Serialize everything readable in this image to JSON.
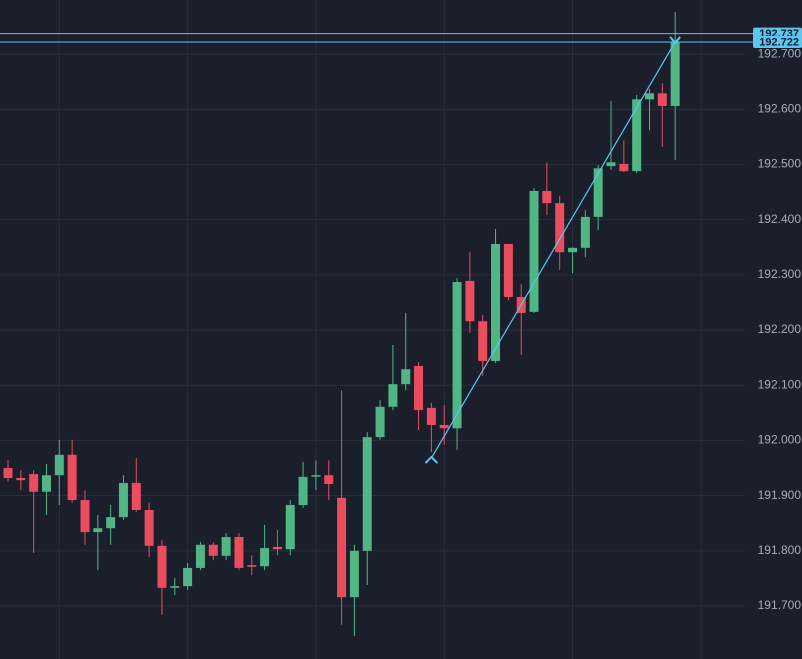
{
  "chart_data": {
    "type": "candlestick",
    "up_color": "#50b683",
    "down_color": "#ea4d5e",
    "grid": true,
    "ylim": [
      191.604,
      192.798
    ],
    "yticks": [
      {
        "value": 191.7,
        "label": "191.700"
      },
      {
        "value": 191.8,
        "label": "191.800"
      },
      {
        "value": 191.9,
        "label": "191.900"
      },
      {
        "value": 192.0,
        "label": "192.000"
      },
      {
        "value": 192.1,
        "label": "192.100"
      },
      {
        "value": 192.2,
        "label": "192.200"
      },
      {
        "value": 192.3,
        "label": "192.300"
      },
      {
        "value": 192.4,
        "label": "192.400"
      },
      {
        "value": 192.5,
        "label": "192.500"
      },
      {
        "value": 192.6,
        "label": "192.600"
      },
      {
        "value": 192.7,
        "label": "192.700"
      }
    ],
    "open": [
      191.95,
      191.932,
      191.939,
      191.907,
      191.937,
      191.974,
      191.892,
      191.834,
      191.841,
      191.861,
      191.923,
      191.874,
      191.809,
      191.733,
      191.736,
      191.769,
      191.811,
      191.791,
      191.825,
      191.774,
      191.772,
      191.807,
      191.803,
      191.883,
      191.936,
      191.937,
      191.896,
      191.716,
      191.8,
      192.006,
      192.061,
      192.102,
      192.135,
      192.059,
      192.028,
      192.022,
      192.289,
      192.216,
      192.144,
      192.356,
      192.26,
      192.233,
      192.452,
      192.43,
      192.341,
      192.349,
      192.405,
      192.497,
      192.501,
      192.488,
      192.618,
      192.629,
      192.606
    ],
    "high": [
      191.964,
      191.946,
      191.946,
      191.957,
      192.001,
      192.001,
      191.91,
      191.865,
      191.883,
      191.937,
      191.968,
      191.888,
      191.82,
      191.751,
      191.778,
      191.816,
      191.816,
      191.832,
      191.832,
      191.792,
      191.847,
      191.838,
      191.892,
      191.961,
      191.964,
      191.964,
      192.091,
      191.811,
      192.015,
      192.073,
      192.173,
      192.231,
      192.142,
      192.068,
      192.064,
      192.294,
      192.341,
      192.227,
      192.383,
      192.356,
      192.283,
      192.457,
      192.503,
      192.443,
      192.35,
      192.417,
      192.499,
      192.615,
      192.544,
      192.626,
      192.637,
      192.647,
      192.776
    ],
    "low": [
      191.925,
      191.91,
      191.796,
      191.865,
      191.883,
      191.887,
      191.811,
      191.765,
      191.811,
      191.856,
      191.87,
      191.789,
      191.684,
      191.72,
      191.729,
      191.765,
      191.783,
      191.783,
      191.765,
      191.756,
      191.765,
      191.792,
      191.792,
      191.878,
      191.91,
      191.892,
      191.666,
      191.646,
      191.738,
      192.001,
      192.055,
      192.091,
      192.019,
      191.979,
      191.992,
      191.983,
      192.195,
      192.117,
      192.14,
      192.254,
      192.155,
      192.231,
      192.408,
      192.309,
      192.303,
      192.332,
      192.381,
      192.49,
      192.486,
      192.484,
      192.562,
      192.532,
      192.508
    ],
    "close": [
      191.932,
      191.928,
      191.907,
      191.937,
      191.974,
      191.892,
      191.834,
      191.841,
      191.861,
      191.923,
      191.874,
      191.809,
      191.733,
      191.736,
      191.769,
      191.811,
      191.791,
      191.825,
      191.769,
      191.771,
      191.805,
      191.803,
      191.883,
      191.934,
      191.937,
      191.921,
      191.716,
      191.8,
      192.006,
      192.061,
      192.102,
      192.129,
      192.055,
      192.028,
      192.022,
      192.287,
      192.216,
      192.144,
      192.356,
      192.26,
      192.231,
      192.452,
      192.43,
      192.341,
      192.349,
      192.405,
      192.493,
      192.504,
      192.488,
      192.618,
      192.629,
      192.606,
      192.722
    ],
    "trend_line": {
      "color": "#5ec6f2",
      "start_candle": 33,
      "start_value": 191.968,
      "end_candle": 52,
      "end_value": 192.722
    },
    "price_lines": [
      {
        "value": 192.737,
        "color": "#5ec6f2"
      },
      {
        "value": 192.722,
        "color": "#5ec6f2"
      }
    ]
  }
}
